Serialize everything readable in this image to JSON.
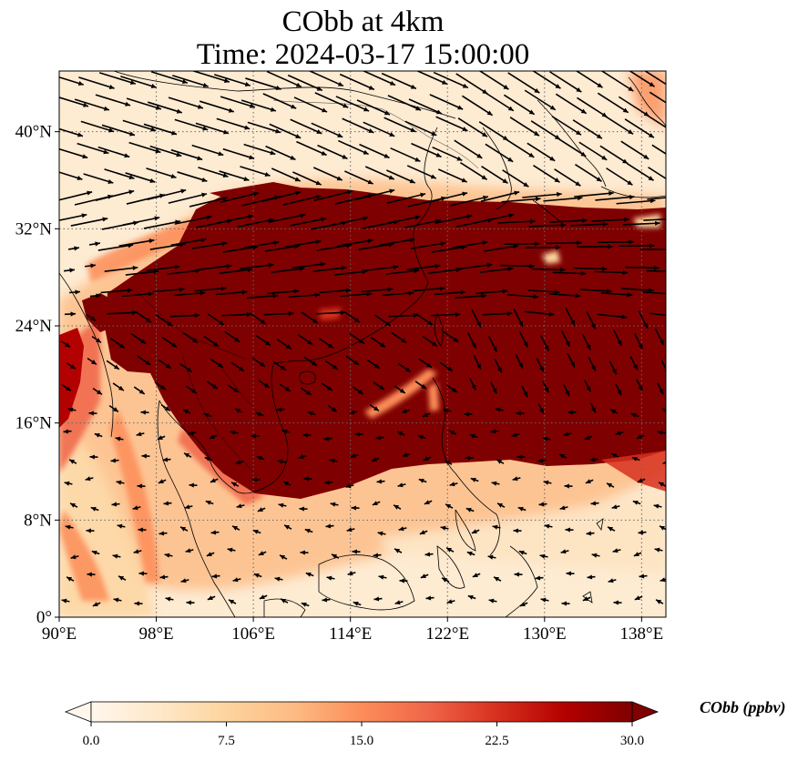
{
  "title": {
    "line1": "CObb at 4km",
    "line2": "Time: 2024-03-17 15:00:00"
  },
  "map": {
    "projection": "PlateCarree",
    "lon_range": [
      90,
      140
    ],
    "lat_range": [
      0,
      45
    ],
    "lon_ticks": [
      {
        "value": 90,
        "label": "90°E"
      },
      {
        "value": 98,
        "label": "98°E"
      },
      {
        "value": 106,
        "label": "106°E"
      },
      {
        "value": 114,
        "label": "114°E"
      },
      {
        "value": 122,
        "label": "122°E"
      },
      {
        "value": 130,
        "label": "130°E"
      },
      {
        "value": 138,
        "label": "138°E"
      }
    ],
    "lat_ticks": [
      {
        "value": 0,
        "label": "0°"
      },
      {
        "value": 8,
        "label": "8°N"
      },
      {
        "value": 16,
        "label": "16°N"
      },
      {
        "value": 24,
        "label": "24°N"
      },
      {
        "value": 32,
        "label": "32°N"
      },
      {
        "value": 40,
        "label": "40°N"
      }
    ],
    "gridlines": "dotted",
    "field": "CObb",
    "plume_color": "#7f0000",
    "background_color": "#fdebd2",
    "wind_vectors": "black arrows"
  },
  "colorbar": {
    "label": "CObb (ppbv)",
    "min": 0.0,
    "max": 30.0,
    "extend": "both",
    "ticks": [
      "0.0",
      "7.5",
      "15.0",
      "22.5",
      "30.0"
    ],
    "colormap": "OrRd",
    "colors": [
      "#fff7ec",
      "#fee8c8",
      "#fdd49e",
      "#fdbb84",
      "#fc8d59",
      "#ef6548",
      "#d7301f",
      "#b30000",
      "#7f0000"
    ]
  }
}
